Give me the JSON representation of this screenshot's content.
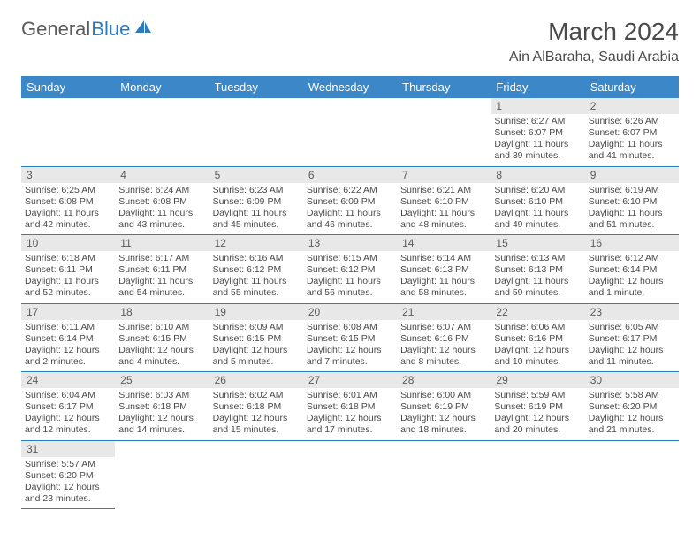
{
  "logo": {
    "part1": "General",
    "part2": "Blue"
  },
  "title": "March 2024",
  "location": "Ain AlBaraha, Saudi Arabia",
  "colors": {
    "header_bg": "#3b87c8",
    "header_text": "#ffffff",
    "rule": "#2d7bc0",
    "daynum_bg": "#e8e8e8",
    "text": "#4a4a4a",
    "logo_blue": "#2d7bc0"
  },
  "weekdays": [
    "Sunday",
    "Monday",
    "Tuesday",
    "Wednesday",
    "Thursday",
    "Friday",
    "Saturday"
  ],
  "weeks": [
    [
      null,
      null,
      null,
      null,
      null,
      {
        "n": "1",
        "sr": "6:27 AM",
        "ss": "6:07 PM",
        "dl": "11 hours and 39 minutes."
      },
      {
        "n": "2",
        "sr": "6:26 AM",
        "ss": "6:07 PM",
        "dl": "11 hours and 41 minutes."
      }
    ],
    [
      {
        "n": "3",
        "sr": "6:25 AM",
        "ss": "6:08 PM",
        "dl": "11 hours and 42 minutes."
      },
      {
        "n": "4",
        "sr": "6:24 AM",
        "ss": "6:08 PM",
        "dl": "11 hours and 43 minutes."
      },
      {
        "n": "5",
        "sr": "6:23 AM",
        "ss": "6:09 PM",
        "dl": "11 hours and 45 minutes."
      },
      {
        "n": "6",
        "sr": "6:22 AM",
        "ss": "6:09 PM",
        "dl": "11 hours and 46 minutes."
      },
      {
        "n": "7",
        "sr": "6:21 AM",
        "ss": "6:10 PM",
        "dl": "11 hours and 48 minutes."
      },
      {
        "n": "8",
        "sr": "6:20 AM",
        "ss": "6:10 PM",
        "dl": "11 hours and 49 minutes."
      },
      {
        "n": "9",
        "sr": "6:19 AM",
        "ss": "6:10 PM",
        "dl": "11 hours and 51 minutes."
      }
    ],
    [
      {
        "n": "10",
        "sr": "6:18 AM",
        "ss": "6:11 PM",
        "dl": "11 hours and 52 minutes."
      },
      {
        "n": "11",
        "sr": "6:17 AM",
        "ss": "6:11 PM",
        "dl": "11 hours and 54 minutes."
      },
      {
        "n": "12",
        "sr": "6:16 AM",
        "ss": "6:12 PM",
        "dl": "11 hours and 55 minutes."
      },
      {
        "n": "13",
        "sr": "6:15 AM",
        "ss": "6:12 PM",
        "dl": "11 hours and 56 minutes."
      },
      {
        "n": "14",
        "sr": "6:14 AM",
        "ss": "6:13 PM",
        "dl": "11 hours and 58 minutes."
      },
      {
        "n": "15",
        "sr": "6:13 AM",
        "ss": "6:13 PM",
        "dl": "11 hours and 59 minutes."
      },
      {
        "n": "16",
        "sr": "6:12 AM",
        "ss": "6:14 PM",
        "dl": "12 hours and 1 minute."
      }
    ],
    [
      {
        "n": "17",
        "sr": "6:11 AM",
        "ss": "6:14 PM",
        "dl": "12 hours and 2 minutes."
      },
      {
        "n": "18",
        "sr": "6:10 AM",
        "ss": "6:15 PM",
        "dl": "12 hours and 4 minutes."
      },
      {
        "n": "19",
        "sr": "6:09 AM",
        "ss": "6:15 PM",
        "dl": "12 hours and 5 minutes."
      },
      {
        "n": "20",
        "sr": "6:08 AM",
        "ss": "6:15 PM",
        "dl": "12 hours and 7 minutes."
      },
      {
        "n": "21",
        "sr": "6:07 AM",
        "ss": "6:16 PM",
        "dl": "12 hours and 8 minutes."
      },
      {
        "n": "22",
        "sr": "6:06 AM",
        "ss": "6:16 PM",
        "dl": "12 hours and 10 minutes."
      },
      {
        "n": "23",
        "sr": "6:05 AM",
        "ss": "6:17 PM",
        "dl": "12 hours and 11 minutes."
      }
    ],
    [
      {
        "n": "24",
        "sr": "6:04 AM",
        "ss": "6:17 PM",
        "dl": "12 hours and 12 minutes."
      },
      {
        "n": "25",
        "sr": "6:03 AM",
        "ss": "6:18 PM",
        "dl": "12 hours and 14 minutes."
      },
      {
        "n": "26",
        "sr": "6:02 AM",
        "ss": "6:18 PM",
        "dl": "12 hours and 15 minutes."
      },
      {
        "n": "27",
        "sr": "6:01 AM",
        "ss": "6:18 PM",
        "dl": "12 hours and 17 minutes."
      },
      {
        "n": "28",
        "sr": "6:00 AM",
        "ss": "6:19 PM",
        "dl": "12 hours and 18 minutes."
      },
      {
        "n": "29",
        "sr": "5:59 AM",
        "ss": "6:19 PM",
        "dl": "12 hours and 20 minutes."
      },
      {
        "n": "30",
        "sr": "5:58 AM",
        "ss": "6:20 PM",
        "dl": "12 hours and 21 minutes."
      }
    ],
    [
      {
        "n": "31",
        "sr": "5:57 AM",
        "ss": "6:20 PM",
        "dl": "12 hours and 23 minutes."
      },
      null,
      null,
      null,
      null,
      null,
      null
    ]
  ],
  "labels": {
    "sunrise": "Sunrise:",
    "sunset": "Sunset:",
    "daylight": "Daylight:"
  }
}
